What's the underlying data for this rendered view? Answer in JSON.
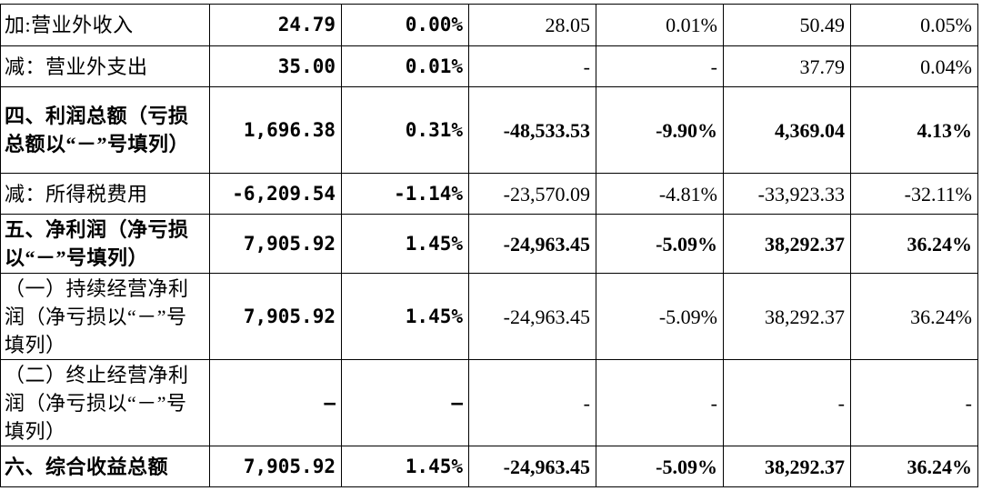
{
  "table": {
    "rows": [
      [
        "加:营业外收入",
        "24.79",
        "0.00%",
        "28.05",
        "0.01%",
        "50.49",
        "0.05%"
      ],
      [
        "减：营业外支出",
        "35.00",
        "0.01%",
        "-",
        "-",
        "37.79",
        "0.04%"
      ],
      [
        "四、利润总额（亏损总额以“－”号填列）",
        "1,696.38",
        "0.31%",
        "-48,533.53",
        "-9.90%",
        "4,369.04",
        "4.13%"
      ],
      [
        "减：所得税费用",
        "-6,209.54",
        "-1.14%",
        "-23,570.09",
        "-4.81%",
        "-33,923.33",
        "-32.11%"
      ],
      [
        "五、净利润（净亏损以“－”号填列）",
        "7,905.92",
        "1.45%",
        "-24,963.45",
        "-5.09%",
        "38,292.37",
        "36.24%"
      ],
      [
        "（一）持续经营净利润（净亏损以“－”号填列）",
        "7,905.92",
        "1.45%",
        "-24,963.45",
        "-5.09%",
        "38,292.37",
        "36.24%"
      ],
      [
        "（二）终止经营净利润（净亏损以“－”号填列）",
        "–",
        "–",
        "-",
        "-",
        "-",
        "-"
      ],
      [
        "六、综合收益总额",
        "7,905.92",
        "1.45%",
        "-24,963.45",
        "-5.09%",
        "38,292.37",
        "36.24%"
      ]
    ]
  }
}
